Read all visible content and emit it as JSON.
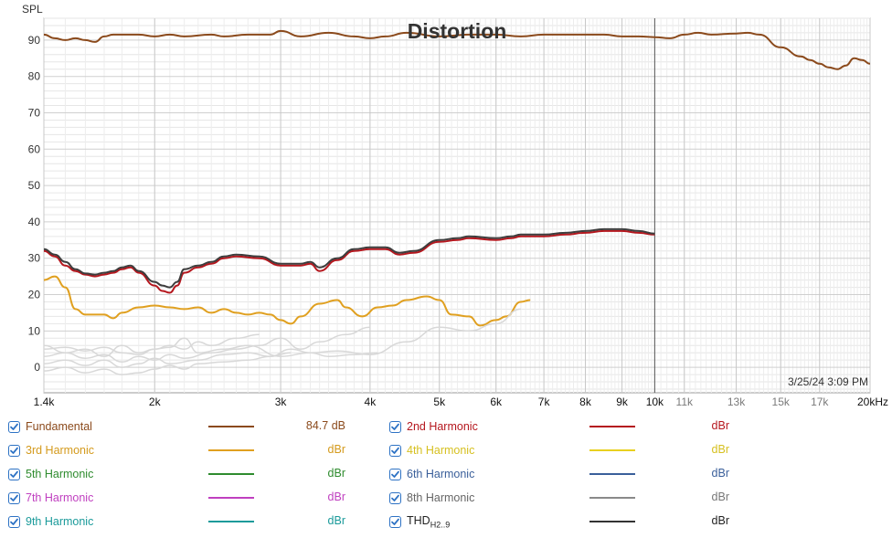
{
  "chart_data": {
    "type": "line",
    "title": "Distortion",
    "ylabel": "SPL",
    "xscale": "log",
    "xlim": [
      1400,
      20000
    ],
    "ylim": [
      -7,
      96
    ],
    "yticks": [
      "0",
      "10",
      "20",
      "30",
      "40",
      "50",
      "60",
      "70",
      "80",
      "90"
    ],
    "xticks": [
      {
        "v": 1400,
        "label": "1.4k",
        "minor": false
      },
      {
        "v": 2000,
        "label": "2k",
        "minor": false
      },
      {
        "v": 3000,
        "label": "3k",
        "minor": false
      },
      {
        "v": 4000,
        "label": "4k",
        "minor": false
      },
      {
        "v": 5000,
        "label": "5k",
        "minor": false
      },
      {
        "v": 6000,
        "label": "6k",
        "minor": false
      },
      {
        "v": 7000,
        "label": "7k",
        "minor": false
      },
      {
        "v": 8000,
        "label": "8k",
        "minor": false
      },
      {
        "v": 9000,
        "label": "9k",
        "minor": false
      },
      {
        "v": 10000,
        "label": "10k",
        "minor": false
      },
      {
        "v": 11000,
        "label": "11k",
        "minor": true
      },
      {
        "v": 13000,
        "label": "13k",
        "minor": true
      },
      {
        "v": 15000,
        "label": "15k",
        "minor": true
      },
      {
        "v": 17000,
        "label": "17k",
        "minor": true
      },
      {
        "v": 20000,
        "label": "20kHz",
        "minor": false
      }
    ],
    "timestamp": "3/25/24 3:09 PM",
    "series": [
      {
        "name": "Fundamental",
        "color": "#8b4a1c",
        "width": 2,
        "x": [
          1400,
          1450,
          1500,
          1550,
          1600,
          1650,
          1700,
          1750,
          1800,
          1900,
          2000,
          2100,
          2200,
          2400,
          2500,
          2700,
          2900,
          3000,
          3200,
          3500,
          3800,
          4000,
          4200,
          4500,
          5000,
          5500,
          6000,
          6500,
          7000,
          8000,
          8500,
          9000,
          9500,
          10000,
          10500,
          11000,
          11500,
          12000,
          13000,
          13500,
          14000,
          15000,
          16000,
          16500,
          17000,
          17500,
          18000,
          18500,
          19000,
          19500,
          20000
        ],
        "y": [
          91.5,
          90.5,
          90,
          90.5,
          90,
          89.5,
          91,
          91.5,
          91.5,
          91.5,
          91,
          91.5,
          91,
          91.5,
          91,
          91.5,
          91.5,
          92.5,
          91,
          92,
          91,
          90.5,
          91,
          92,
          91,
          91.5,
          91.5,
          91,
          91.5,
          91.5,
          91.5,
          91,
          91,
          90.8,
          90.5,
          91.5,
          92,
          91.5,
          91.8,
          92,
          91.5,
          88,
          85.5,
          84.5,
          83.5,
          82.5,
          82,
          83,
          85,
          84.5,
          83.5
        ]
      },
      {
        "name": "2nd Harmonic",
        "color": "#b5171e",
        "width": 2,
        "x": [
          1400,
          1450,
          1500,
          1550,
          1600,
          1650,
          1700,
          1750,
          1800,
          1850,
          1900,
          2000,
          2050,
          2100,
          2150,
          2200,
          2300,
          2400,
          2500,
          2600,
          2800,
          3000,
          3200,
          3300,
          3400,
          3600,
          3800,
          4000,
          4200,
          4400,
          4600,
          5000,
          5300,
          5500,
          6000,
          6300,
          6500,
          7000,
          7500,
          8000,
          8500,
          9000,
          9500,
          10000
        ],
        "y": [
          32,
          30.5,
          28,
          26.5,
          25.5,
          25,
          25.5,
          26,
          27,
          27.5,
          26,
          22.5,
          21,
          20.5,
          22.5,
          26,
          27.5,
          28.5,
          30,
          30.5,
          30,
          28,
          28,
          28.5,
          26.5,
          29.5,
          32,
          32.5,
          32.5,
          31,
          31.5,
          34.5,
          35,
          35.5,
          35,
          35.5,
          36,
          36,
          36.5,
          37,
          37.5,
          37.5,
          37,
          36.5
        ]
      },
      {
        "name": "THD",
        "color": "#3d3d3d",
        "width": 2,
        "x": [
          1400,
          1450,
          1500,
          1550,
          1600,
          1650,
          1700,
          1750,
          1800,
          1850,
          1900,
          2000,
          2050,
          2100,
          2150,
          2200,
          2300,
          2400,
          2500,
          2600,
          2800,
          3000,
          3200,
          3300,
          3400,
          3600,
          3800,
          4000,
          4200,
          4400,
          4600,
          5000,
          5300,
          5500,
          6000,
          6300,
          6500,
          7000,
          7500,
          8000,
          8500,
          9000,
          9500,
          10000
        ],
        "y": [
          32.5,
          31,
          29,
          27,
          25.8,
          25.5,
          26,
          26.5,
          27.5,
          28,
          26.5,
          23.5,
          22.5,
          22,
          23.5,
          27,
          28,
          29,
          30.5,
          31,
          30.5,
          28.5,
          28.5,
          29,
          27.5,
          30,
          32.5,
          33,
          33,
          31.5,
          32,
          35,
          35.5,
          36,
          35.5,
          36,
          36.5,
          36.5,
          37,
          37.5,
          38,
          38,
          37.5,
          36.8
        ]
      },
      {
        "name": "3rd Harmonic",
        "color": "#e0a020",
        "width": 2,
        "x": [
          1400,
          1450,
          1500,
          1550,
          1600,
          1650,
          1700,
          1750,
          1800,
          1900,
          2000,
          2100,
          2200,
          2300,
          2400,
          2500,
          2600,
          2700,
          2800,
          2900,
          3000,
          3100,
          3200,
          3400,
          3600,
          3700,
          3900,
          4100,
          4300,
          4500,
          4800,
          5000,
          5200,
          5500,
          5700,
          6000,
          6200,
          6500,
          6700
        ],
        "y": [
          24,
          25,
          22,
          16,
          14.5,
          14.5,
          14.5,
          13.5,
          15,
          16.5,
          17,
          16.5,
          16,
          16.5,
          15,
          16,
          15,
          14.5,
          15,
          14.5,
          13,
          12,
          14,
          17.5,
          18.5,
          16.5,
          14,
          16.5,
          17,
          18.5,
          19.5,
          18.5,
          14.5,
          14,
          11.5,
          13,
          14,
          18,
          18.5
        ]
      },
      {
        "name": "4th Harmonic",
        "color": "#d8d8d8",
        "width": 1.5,
        "x": [
          1400,
          1500,
          1600,
          1700,
          1800,
          1900,
          2000,
          2100,
          2200,
          2300,
          2500,
          2700,
          3000,
          3300,
          3600,
          4000,
          4500,
          5000,
          5500,
          6000,
          6500
        ],
        "y": [
          5,
          5.5,
          4.5,
          5.5,
          4,
          3.5,
          5,
          5.5,
          8,
          4,
          5,
          6,
          3,
          4,
          4.5,
          3.5,
          7,
          11,
          10,
          12,
          16
        ]
      },
      {
        "name": "5th Harmonic",
        "color": "#d8d8d8",
        "width": 1.5,
        "x": [
          1400,
          1500,
          1600,
          1700,
          1800,
          1900,
          2000,
          2100,
          2200,
          2400,
          2600,
          2800,
          3000,
          3200,
          3400,
          3700,
          4000
        ],
        "y": [
          3,
          4,
          2.5,
          3.5,
          1.5,
          3,
          2,
          3.5,
          2.5,
          4,
          5,
          6,
          8,
          5,
          7,
          9,
          11
        ]
      },
      {
        "name": "6th Harmonic",
        "color": "#d8d8d8",
        "width": 1.5,
        "x": [
          1400,
          1500,
          1600,
          1700,
          1800,
          1900,
          2000,
          2100,
          2300,
          2500,
          2700,
          2900,
          3100,
          3300,
          3500,
          3800,
          4100
        ],
        "y": [
          1,
          2,
          0.5,
          2,
          0,
          1,
          2.5,
          1,
          2,
          3.5,
          4,
          3,
          5,
          4,
          3,
          3.5,
          4
        ]
      },
      {
        "name": "7th Harmonic",
        "color": "#d8d8d8",
        "width": 1.5,
        "x": [
          1400,
          1500,
          1600,
          1700,
          1800,
          1900,
          2000,
          2100,
          2200,
          2300,
          2500,
          2700,
          2900,
          3100
        ],
        "y": [
          -1,
          0,
          -1.5,
          -0.5,
          -2,
          -1.5,
          -0.5,
          0.5,
          -0.5,
          1,
          1.5,
          2,
          3,
          4
        ]
      },
      {
        "name": "8th Harmonic",
        "color": "#d8d8d8",
        "width": 1.5,
        "x": [
          1400,
          1500,
          1600,
          1700,
          1800,
          1900,
          2000,
          2100,
          2200,
          2300,
          2400,
          2600,
          2800
        ],
        "y": [
          6,
          4,
          5,
          3,
          6,
          4,
          5,
          6,
          5,
          7,
          6,
          8,
          9
        ]
      }
    ]
  },
  "legend": {
    "items": [
      {
        "name": "Fundamental",
        "color": "#8b4a1c",
        "text": "#8b4a1c",
        "value": "84.7 dB",
        "value_color": "#8b4a1c"
      },
      {
        "name": "2nd Harmonic",
        "color": "#b5171e",
        "text": "#b5171e",
        "value": "dBr",
        "value_color": "#b5171e"
      },
      {
        "name": "3rd Harmonic",
        "color": "#e0a020",
        "text": "#d49a1c",
        "value": "dBr",
        "value_color": "#d49a1c"
      },
      {
        "name": "4th Harmonic",
        "color": "#e8d020",
        "text": "#d6c020",
        "value": "dBr",
        "value_color": "#d6c020"
      },
      {
        "name": "5th Harmonic",
        "color": "#2e8b2e",
        "text": "#2e8b2e",
        "value": "dBr",
        "value_color": "#2e8b2e"
      },
      {
        "name": "6th Harmonic",
        "color": "#3a5f9a",
        "text": "#3a5f9a",
        "value": "dBr",
        "value_color": "#3a5f9a"
      },
      {
        "name": "7th Harmonic",
        "color": "#c040c0",
        "text": "#c040c0",
        "value": "dBr",
        "value_color": "#c040c0"
      },
      {
        "name": "8th Harmonic",
        "color": "#8a8a8a",
        "text": "#666666",
        "value": "dBr",
        "value_color": "#777777"
      },
      {
        "name": "9th Harmonic",
        "color": "#1a9a9a",
        "text": "#1a9a9a",
        "value": "dBr",
        "value_color": "#1a9a9a"
      },
      {
        "name": "THD",
        "sub": "H2..9",
        "color": "#333333",
        "text": "#222222",
        "value": "dBr",
        "value_color": "#222222"
      }
    ]
  }
}
